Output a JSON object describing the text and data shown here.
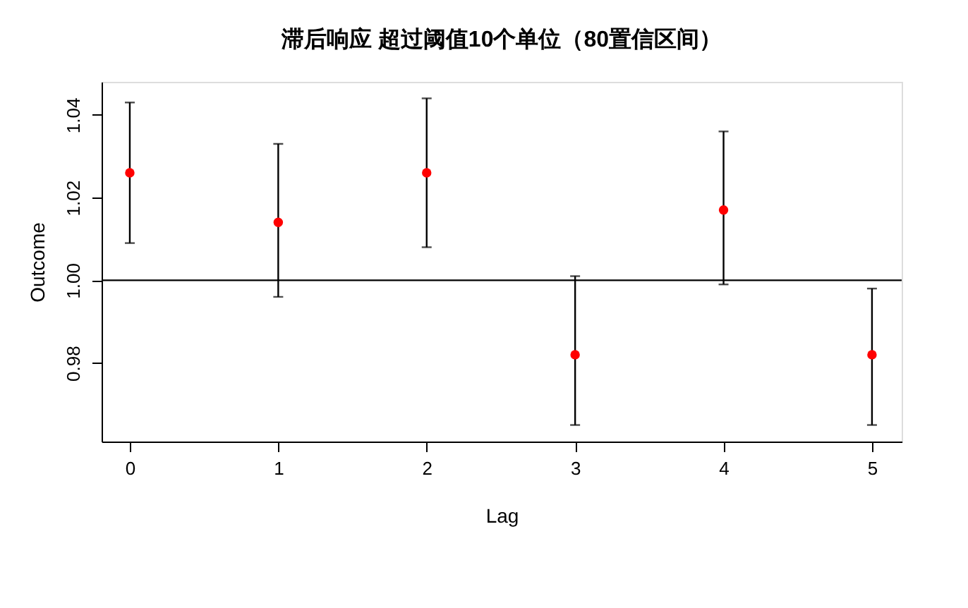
{
  "chart_data": {
    "type": "scatter",
    "title": "滞后响应 超过阈值10个单位（80置信区间）",
    "xlabel": "Lag",
    "ylabel": "Outcome",
    "x": [
      0,
      1,
      2,
      3,
      4,
      5
    ],
    "series": [
      {
        "color": "#ff0000",
        "values": [
          1.026,
          1.014,
          1.026,
          0.982,
          1.017,
          0.982
        ],
        "errors": [
          [
            1.009,
            1.043
          ],
          [
            0.996,
            1.033
          ],
          [
            1.008,
            1.044
          ],
          [
            0.965,
            1.001
          ],
          [
            0.999,
            1.036
          ],
          [
            0.965,
            0.998
          ]
        ]
      }
    ],
    "xlim": [
      -0.19,
      5.2
    ],
    "xticks": [
      0,
      1,
      2,
      3,
      4,
      5
    ],
    "ylim": [
      0.961,
      1.048
    ],
    "yticks": [
      {
        "value": 0.98,
        "label": "0.98"
      },
      {
        "value": 1.0,
        "label": "1.00"
      },
      {
        "value": 1.02,
        "label": "1.02"
      },
      {
        "value": 1.04,
        "label": "1.04"
      }
    ],
    "ref_lines": [
      {
        "axis": "y",
        "value": 1.0,
        "color": "#000000"
      }
    ],
    "marker": "circle",
    "grid": false
  }
}
